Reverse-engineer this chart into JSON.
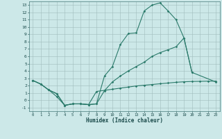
{
  "title": "",
  "xlabel": "Humidex (Indice chaleur)",
  "bg_color": "#cce8e8",
  "grid_color_major": "#a8c8c8",
  "grid_color_minor": "#c0d8d8",
  "line_color": "#2a7a6a",
  "xlim": [
    -0.5,
    23.5
  ],
  "ylim": [
    -1.5,
    13.5
  ],
  "c1x": [
    0,
    1,
    2,
    3,
    4,
    5,
    6,
    7,
    8,
    9,
    10,
    11,
    12,
    13,
    14,
    15,
    16,
    17,
    18,
    19,
    20
  ],
  "c1y": [
    2.7,
    2.2,
    1.4,
    0.9,
    -0.7,
    -0.5,
    -0.5,
    -0.6,
    -0.5,
    3.3,
    4.6,
    7.6,
    9.1,
    9.2,
    12.2,
    13.0,
    13.3,
    12.2,
    11.0,
    8.5,
    3.8
  ],
  "c2x": [
    0,
    1,
    2,
    3,
    4,
    5,
    6,
    7,
    8,
    9,
    10,
    11,
    12,
    13,
    14,
    15,
    16,
    17,
    18,
    19,
    20,
    23
  ],
  "c2y": [
    2.7,
    2.2,
    1.4,
    0.9,
    -0.7,
    -0.5,
    -0.5,
    -0.6,
    -0.5,
    1.3,
    2.5,
    3.3,
    4.0,
    4.6,
    5.2,
    6.0,
    6.5,
    6.9,
    7.3,
    8.5,
    3.8,
    2.5
  ],
  "c3x": [
    0,
    1,
    2,
    3,
    4,
    5,
    6,
    7,
    8,
    9,
    10,
    11,
    12,
    13,
    14,
    15,
    16,
    17,
    18,
    19,
    20,
    21,
    22,
    23
  ],
  "c3y": [
    2.7,
    2.2,
    1.4,
    0.5,
    -0.7,
    -0.5,
    -0.5,
    -0.6,
    1.2,
    1.35,
    1.5,
    1.65,
    1.8,
    1.95,
    2.05,
    2.15,
    2.25,
    2.35,
    2.45,
    2.52,
    2.56,
    2.58,
    2.6,
    2.6
  ]
}
